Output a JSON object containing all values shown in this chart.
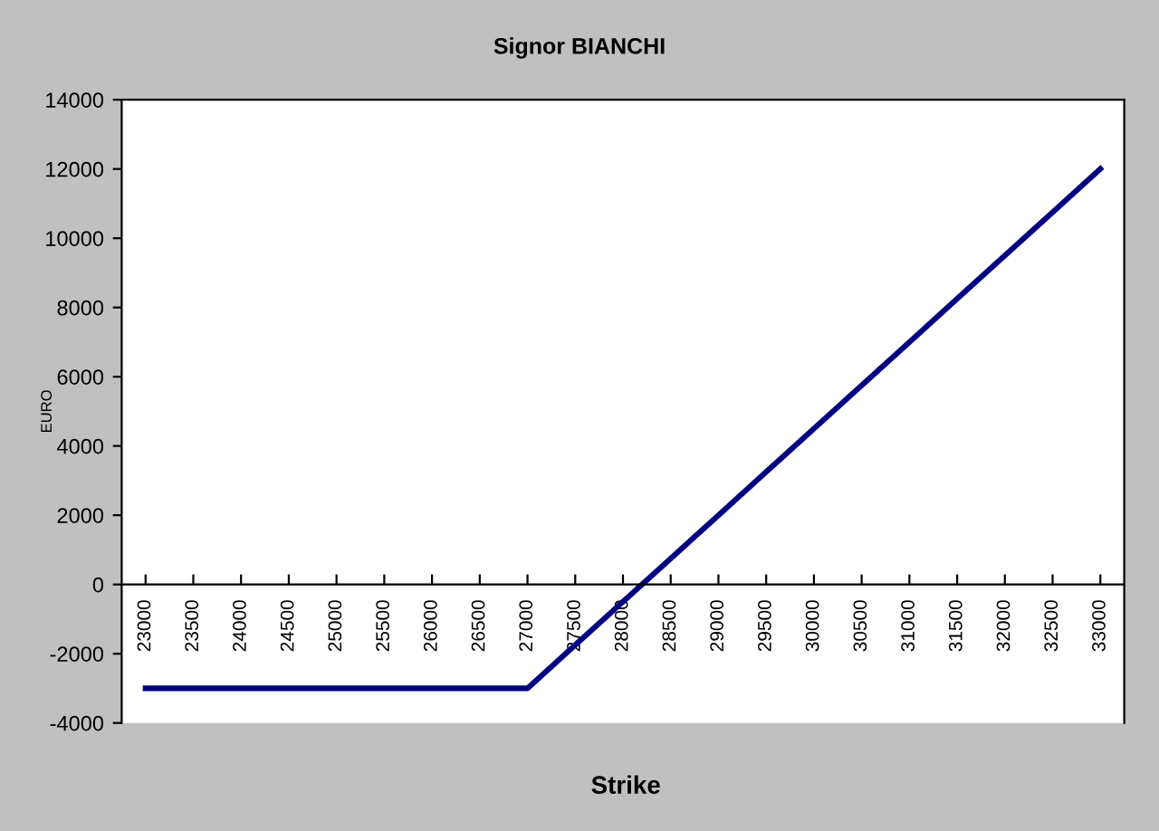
{
  "chart_data": {
    "type": "line",
    "title": "Signor BIANCHI",
    "xlabel": "Strike",
    "ylabel": "EURO",
    "categories": [
      "23000",
      "23500",
      "24000",
      "24500",
      "25000",
      "25500",
      "26000",
      "26500",
      "27000",
      "27500",
      "28000",
      "28500",
      "29000",
      "29500",
      "30000",
      "30500",
      "31000",
      "31500",
      "32000",
      "32500",
      "33000"
    ],
    "series": [
      {
        "color": "#000080",
        "values": [
          -3000,
          -3000,
          -3000,
          -3000,
          -3000,
          -3000,
          -3000,
          -3000,
          -3000,
          -1750,
          -500,
          750,
          2000,
          3250,
          4500,
          5750,
          7000,
          8250,
          9500,
          10750,
          12000
        ]
      }
    ],
    "ylim": [
      -4000,
      14000
    ],
    "yticks": [
      -4000,
      -2000,
      0,
      2000,
      4000,
      6000,
      8000,
      10000,
      12000,
      14000
    ],
    "grid": false,
    "legend": false,
    "marker": "none",
    "line_style": "solid"
  }
}
